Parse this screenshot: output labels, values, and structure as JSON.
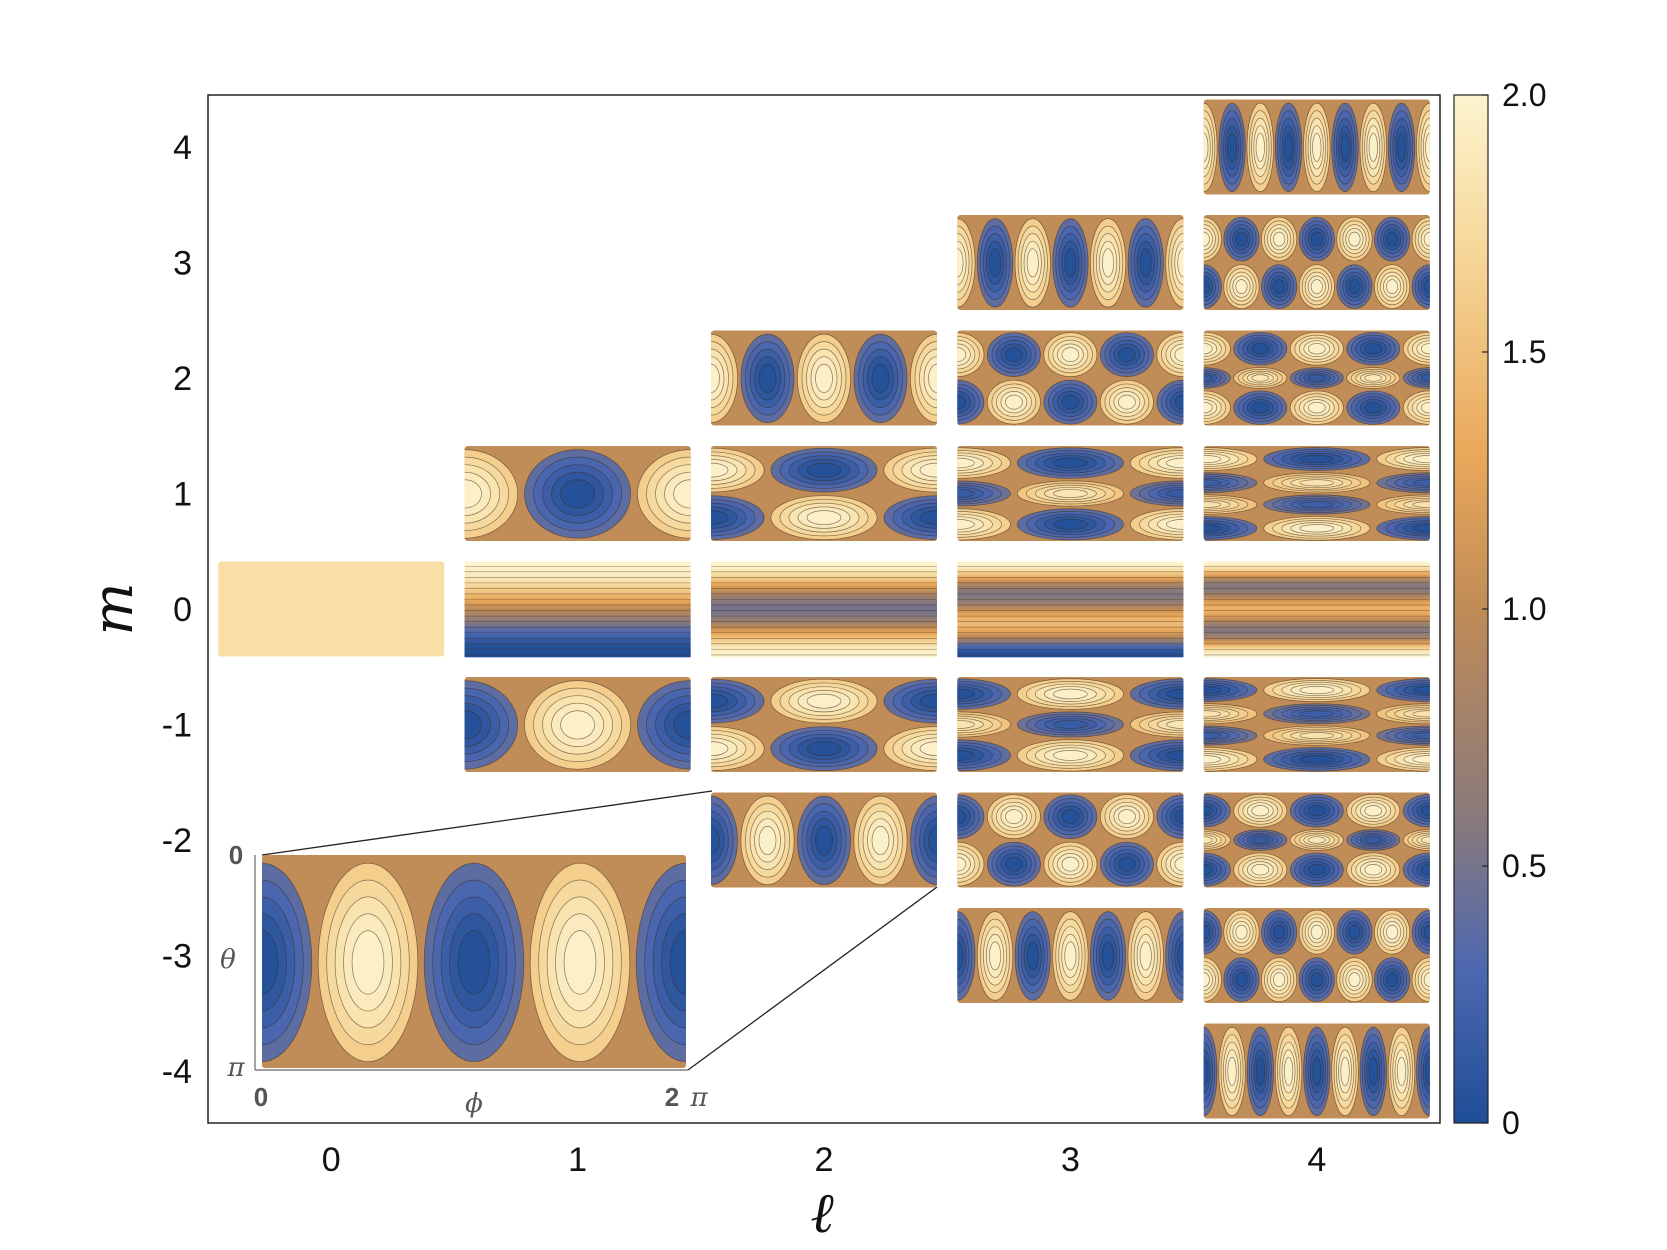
{
  "chart_data": {
    "type": "heatmap",
    "title": "",
    "xlabel": "ℓ",
    "ylabel": "m",
    "x_ticks": [
      "0",
      "1",
      "2",
      "3",
      "4"
    ],
    "y_ticks": [
      "4",
      "3",
      "2",
      "1",
      "0",
      "-1",
      "-2",
      "-3",
      "-4"
    ],
    "xlim": [
      -0.5,
      4.5
    ],
    "ylim": [
      -4.45,
      4.45
    ],
    "grid": false,
    "panel_content": "|Y_ℓm(θ,φ)| + 1 contour maps over θ ∈ [0, π], φ ∈ [0, 2π]",
    "panels": [
      {
        "l": 0,
        "m": 0
      },
      {
        "l": 1,
        "m": -1
      },
      {
        "l": 1,
        "m": 0
      },
      {
        "l": 1,
        "m": 1
      },
      {
        "l": 2,
        "m": -2
      },
      {
        "l": 2,
        "m": -1
      },
      {
        "l": 2,
        "m": 0
      },
      {
        "l": 2,
        "m": 1
      },
      {
        "l": 2,
        "m": 2
      },
      {
        "l": 3,
        "m": -3
      },
      {
        "l": 3,
        "m": -2
      },
      {
        "l": 3,
        "m": -1
      },
      {
        "l": 3,
        "m": 0
      },
      {
        "l": 3,
        "m": 1
      },
      {
        "l": 3,
        "m": 2
      },
      {
        "l": 3,
        "m": 3
      },
      {
        "l": 4,
        "m": -4
      },
      {
        "l": 4,
        "m": -3
      },
      {
        "l": 4,
        "m": -2
      },
      {
        "l": 4,
        "m": -1
      },
      {
        "l": 4,
        "m": 0
      },
      {
        "l": 4,
        "m": 1
      },
      {
        "l": 4,
        "m": 2
      },
      {
        "l": 4,
        "m": 3
      },
      {
        "l": 4,
        "m": 4
      }
    ],
    "colorbar": {
      "min": 0,
      "max": 2.0,
      "ticks": [
        "0",
        "0.5",
        "1.0",
        "1.5",
        "2.0"
      ],
      "colors": [
        "#1f4e96",
        "#4d68b0",
        "#8a7a7a",
        "#c08c57",
        "#e9a85b",
        "#f6d79a",
        "#fdf4cf"
      ]
    },
    "inset": {
      "l": 2,
      "m": -2,
      "theta_label": "θ",
      "phi_label": "ϕ",
      "theta_ticks": [
        "0",
        "π"
      ],
      "phi_ticks": [
        "0",
        "2",
        "π"
      ]
    }
  }
}
